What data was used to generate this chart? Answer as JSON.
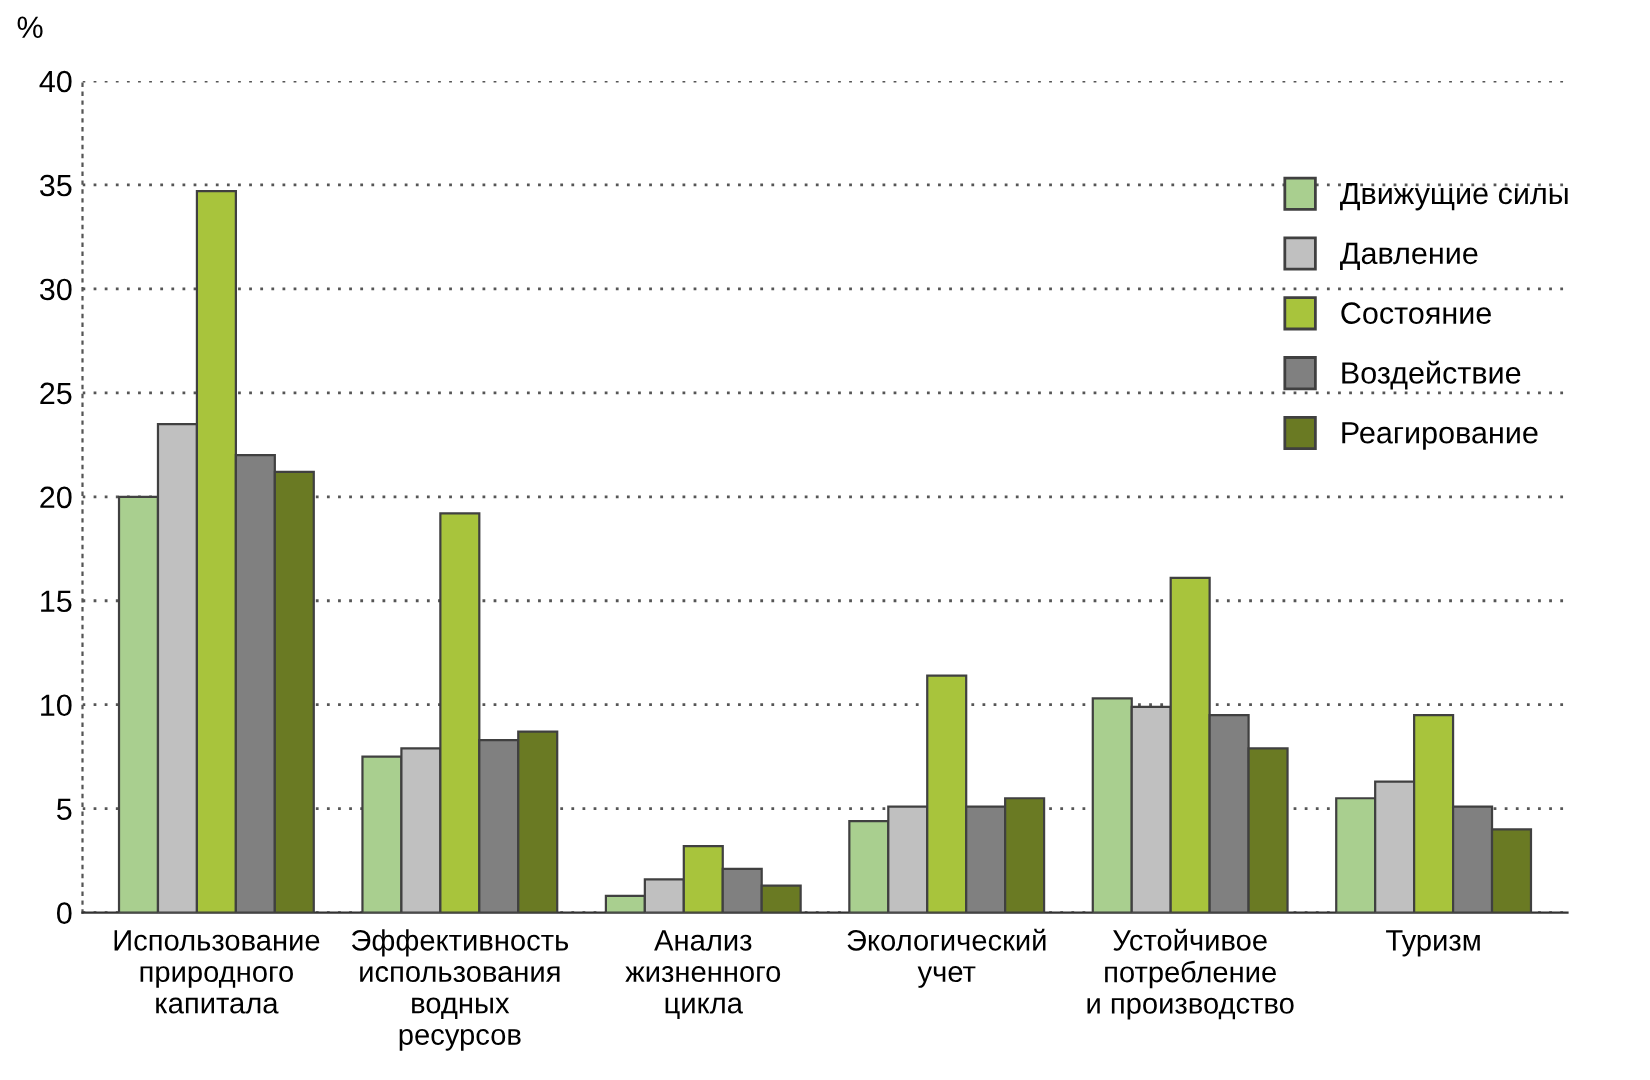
{
  "chart_data": {
    "type": "bar",
    "ylabel": "%",
    "categories": [
      "Использование\nприродного\nкапитала",
      "Эффективность\nиспользования\nводных\nресурсов",
      "Анализ\nжизненного\nцикла",
      "Экологический\nучет",
      "Устойчивое\nпотребление\nи производство",
      "Туризм"
    ],
    "series": [
      {
        "name": "Движущие силы",
        "color": "#a9cf8f",
        "values": [
          20,
          7.5,
          0.8,
          4.4,
          10.3,
          5.5
        ]
      },
      {
        "name": "Давление",
        "color": "#c0c0c0",
        "values": [
          23.5,
          7.9,
          1.6,
          5.1,
          9.9,
          6.3
        ]
      },
      {
        "name": "Состояние",
        "color": "#a8c43c",
        "values": [
          34.7,
          19.2,
          3.2,
          11.4,
          16.1,
          9.5
        ]
      },
      {
        "name": "Воздействие",
        "color": "#808080",
        "values": [
          22,
          8.3,
          2.1,
          5.1,
          9.5,
          5.1
        ]
      },
      {
        "name": "Реагирование",
        "color": "#6a7a23",
        "values": [
          21.2,
          8.7,
          1.3,
          5.5,
          7.9,
          4.0
        ]
      }
    ],
    "ylim": [
      0,
      40
    ],
    "yticks": [
      0,
      5,
      10,
      15,
      20,
      25,
      30,
      35,
      40
    ],
    "grid": "y",
    "legend": "right"
  }
}
